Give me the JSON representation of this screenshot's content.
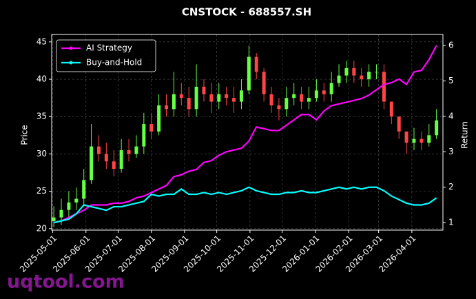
{
  "chart_data": {
    "type": "candlestick",
    "title": "CNSTOCK - 688557.SH",
    "ylabel": "Price",
    "y2label": "Return",
    "watermark": "uqtool.com",
    "x": [
      "2025-05-02",
      "2025-05-09",
      "2025-05-16",
      "2025-05-23",
      "2025-05-30",
      "2025-06-06",
      "2025-06-13",
      "2025-06-20",
      "2025-06-27",
      "2025-07-04",
      "2025-07-11",
      "2025-07-18",
      "2025-07-25",
      "2025-08-01",
      "2025-08-08",
      "2025-08-15",
      "2025-08-22",
      "2025-08-29",
      "2025-09-05",
      "2025-09-12",
      "2025-09-19",
      "2025-09-26",
      "2025-10-03",
      "2025-10-10",
      "2025-10-17",
      "2025-10-24",
      "2025-10-31",
      "2025-11-07",
      "2025-11-14",
      "2025-11-21",
      "2025-11-28",
      "2025-12-05",
      "2025-12-12",
      "2025-12-19",
      "2025-12-26",
      "2026-01-02",
      "2026-01-09",
      "2026-01-16",
      "2026-01-23",
      "2026-01-30",
      "2026-02-06",
      "2026-02-13",
      "2026-02-20",
      "2026-02-27",
      "2026-03-06",
      "2026-03-13",
      "2026-03-20",
      "2026-03-27",
      "2026-04-03",
      "2026-04-10",
      "2026-04-17",
      "2026-04-24"
    ],
    "open": [
      21,
      21.5,
      22.5,
      23.5,
      24,
      26.5,
      31,
      30,
      29,
      28,
      30.5,
      30,
      31,
      34,
      33,
      36.5,
      36,
      38,
      37.5,
      36,
      39,
      38,
      37,
      38,
      37.5,
      37,
      38.5,
      43,
      41,
      38,
      36.5,
      36,
      37.5,
      38,
      37,
      37.5,
      38.5,
      38,
      39.5,
      40.5,
      41.5,
      40.5,
      40,
      41,
      41,
      37,
      35,
      33,
      31.5,
      32,
      31.5,
      32.5
    ],
    "high": [
      23,
      24,
      25,
      25.5,
      28,
      34,
      32.5,
      31.5,
      30.5,
      32,
      32,
      32.5,
      35.5,
      35.5,
      38,
      38,
      41,
      39.5,
      39,
      42,
      40,
      39.5,
      39.5,
      39,
      39,
      40,
      44.5,
      43.5,
      41.5,
      39,
      37.5,
      39,
      39.5,
      39,
      39,
      40,
      39.5,
      41,
      42,
      42.5,
      42.5,
      41.5,
      42,
      42,
      42,
      37,
      35,
      33,
      33.5,
      33,
      34,
      36
    ],
    "low": [
      20.2,
      20.5,
      21.5,
      22.5,
      23,
      26,
      29,
      28,
      27,
      27.5,
      29,
      29.5,
      30,
      32,
      32.5,
      35,
      35,
      36.5,
      35,
      35,
      37,
      35.5,
      36,
      36.5,
      35.5,
      36,
      38,
      40,
      37,
      35.5,
      34.5,
      35,
      36.5,
      36,
      36,
      37,
      37,
      37,
      39,
      39.5,
      39.5,
      39,
      39,
      40,
      36,
      34,
      32,
      30,
      30.5,
      30.5,
      31,
      32
    ],
    "close": [
      21.5,
      22.5,
      23.5,
      24,
      26.5,
      31,
      30,
      29,
      28,
      30.5,
      30,
      31,
      34,
      33,
      36.5,
      36,
      38,
      37.5,
      36,
      39,
      38,
      37,
      38,
      37.5,
      37,
      38.5,
      43,
      41,
      38,
      36.5,
      36,
      37.5,
      38,
      37,
      37.5,
      38.5,
      38,
      39.5,
      40.5,
      41.5,
      40.5,
      40,
      41,
      41,
      37,
      35,
      33,
      31.5,
      32,
      31.5,
      32.5,
      34.5
    ],
    "up_color": "#66ff44",
    "down_color": "#ff4444",
    "series": [
      {
        "name": "AI Strategy",
        "color": "#ff00ff",
        "axis": "y2",
        "values": [
          1.0,
          1.05,
          1.15,
          1.25,
          1.35,
          1.5,
          1.5,
          1.5,
          1.55,
          1.55,
          1.6,
          1.7,
          1.75,
          1.85,
          1.95,
          2.05,
          2.3,
          2.35,
          2.45,
          2.5,
          2.7,
          2.75,
          2.9,
          3.0,
          3.05,
          3.1,
          3.3,
          3.7,
          3.65,
          3.6,
          3.6,
          3.75,
          3.9,
          4.05,
          4.05,
          3.9,
          4.15,
          4.3,
          4.35,
          4.4,
          4.45,
          4.5,
          4.6,
          4.75,
          4.9,
          4.95,
          5.05,
          4.9,
          5.25,
          5.3,
          5.6,
          6.0
        ]
      },
      {
        "name": "Buy-and-Hold",
        "color": "#00ffff",
        "axis": "y2",
        "values": [
          1.0,
          1.05,
          1.1,
          1.25,
          1.5,
          1.45,
          1.4,
          1.35,
          1.45,
          1.45,
          1.5,
          1.55,
          1.6,
          1.8,
          1.75,
          1.8,
          1.8,
          1.95,
          1.8,
          1.8,
          1.85,
          1.8,
          1.85,
          1.8,
          1.85,
          1.9,
          2.0,
          1.9,
          1.85,
          1.8,
          1.8,
          1.85,
          1.85,
          1.9,
          1.85,
          1.85,
          1.9,
          1.95,
          2.0,
          1.95,
          2.0,
          1.95,
          2.0,
          2.0,
          1.9,
          1.75,
          1.65,
          1.55,
          1.5,
          1.5,
          1.55,
          1.7
        ]
      }
    ],
    "xlim": [
      "2025-04-30",
      "2026-04-30"
    ],
    "xticks": [
      "2025-05-01",
      "2025-06-01",
      "2025-07-01",
      "2025-08-01",
      "2025-09-01",
      "2025-10-01",
      "2025-11-01",
      "2025-12-01",
      "2026-01-01",
      "2026-02-01",
      "2026-03-01",
      "2026-04-01"
    ],
    "ylim": [
      19.8,
      46
    ],
    "yticks": [
      20,
      25,
      30,
      35,
      40,
      45
    ],
    "y2lim": [
      0.79,
      6.31
    ],
    "y2ticks": [
      1,
      2,
      3,
      4,
      5,
      6
    ],
    "grid": true,
    "legend": "upper left"
  }
}
